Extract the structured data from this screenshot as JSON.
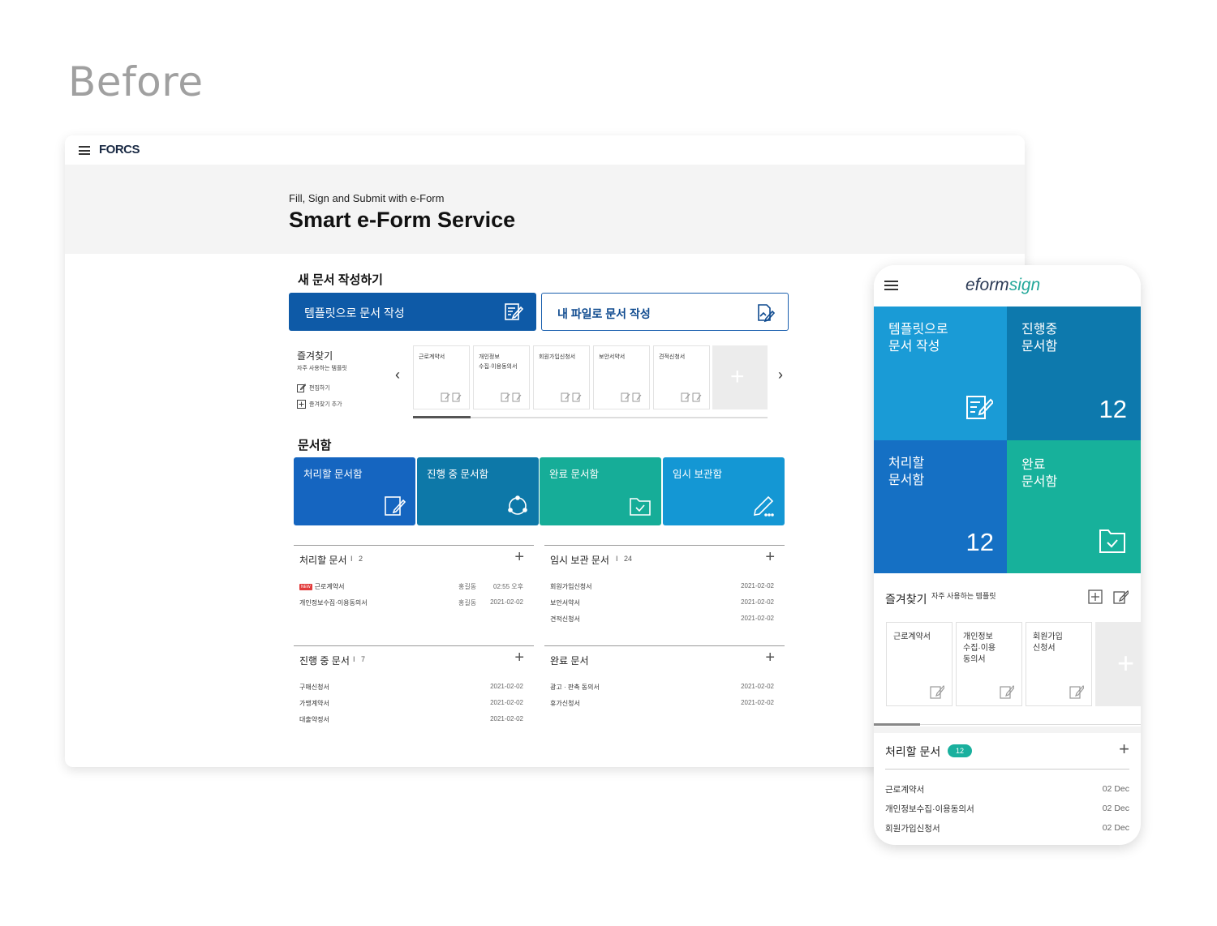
{
  "page_label": "Before",
  "desktop": {
    "logo": "FORCS",
    "hero": {
      "subtitle": "Fill, Sign and Submit with e-Form",
      "title": "Smart e-Form Service"
    },
    "new_doc": {
      "title": "새 문서 작성하기",
      "template_button": "템플릿으로 문서 작성",
      "file_button": "내 파일로 문서 작성"
    },
    "favorites": {
      "title": "즐겨찾기",
      "subtitle": "자주 사용하는 템플릿",
      "edit": "편집하기",
      "add": "즐겨찾기 추가",
      "templates": [
        "근로계약서",
        "개인정보\n수집·이용동의서",
        "회원가입신청서",
        "보안서약서",
        "견적신청서"
      ],
      "add_symbol": "+",
      "prev": "‹",
      "next": "›"
    },
    "docbox": {
      "title": "문서함",
      "boxes": [
        {
          "label": "처리할 문서함",
          "color": "#1565c0"
        },
        {
          "label": "진행 중 문서함",
          "color": "#0d78a8"
        },
        {
          "label": "완료 문서함",
          "color": "#16ad98"
        },
        {
          "label": "임시 보관함",
          "color": "#1497d4"
        }
      ]
    },
    "lists": {
      "todo": {
        "title": "처리할 문서",
        "count": "2",
        "rows": [
          {
            "new": "NEW",
            "name": "근로계약서",
            "who": "홍길동",
            "date": "02:55 오후"
          },
          {
            "name": "개인정보수집·이용동의서",
            "who": "홍길동",
            "date": "2021-02-02"
          }
        ]
      },
      "temp": {
        "title": "임시 보관 문서",
        "count": "24",
        "rows": [
          {
            "name": "회원가입신청서",
            "date": "2021-02-02"
          },
          {
            "name": "보안서약서",
            "date": "2021-02-02"
          },
          {
            "name": "견적신청서",
            "date": "2021-02-02"
          }
        ]
      },
      "progress": {
        "title": "진행 중 문서",
        "count": "7",
        "rows": [
          {
            "name": "구매신청서",
            "date": "2021-02-02"
          },
          {
            "name": "가맹계약서",
            "date": "2021-02-02"
          },
          {
            "name": "대출약정서",
            "date": "2021-02-02"
          }
        ]
      },
      "done": {
        "title": "완료 문서",
        "rows": [
          {
            "name": "광고 · 판촉 동의서",
            "date": "2021-02-02"
          },
          {
            "name": "휴가신청서",
            "date": "2021-02-02"
          }
        ]
      },
      "plus": "+",
      "divider": "I"
    }
  },
  "mobile": {
    "logo_prefix": "eform",
    "logo_suffix": "sign",
    "tiles": [
      {
        "label": "템플릿으로\n문서 작성",
        "color": "#1a9bd6"
      },
      {
        "label": "진행중\n문서함",
        "count": "12",
        "color": "#0d79ad"
      },
      {
        "label": "처리할\n문서함",
        "count": "12",
        "color": "#1570c4"
      },
      {
        "label": "완료\n문서함",
        "color": "#17b19b"
      }
    ],
    "favorites": {
      "title": "즐겨찾기",
      "subtitle": "자주 사용하는 템플릿",
      "templates": [
        "근로계약서",
        "개인정보\n수집·이용\n동의서",
        "회원가입\n신청서"
      ],
      "add_symbol": "+"
    },
    "todo": {
      "title": "처리할 문서",
      "count": "12",
      "plus": "+",
      "rows": [
        {
          "name": "근로계약서",
          "date": "02 Dec"
        },
        {
          "name": "개인정보수집·이용동의서",
          "date": "02 Dec"
        },
        {
          "name": "회원가입신청서",
          "date": "02 Dec"
        }
      ]
    }
  }
}
